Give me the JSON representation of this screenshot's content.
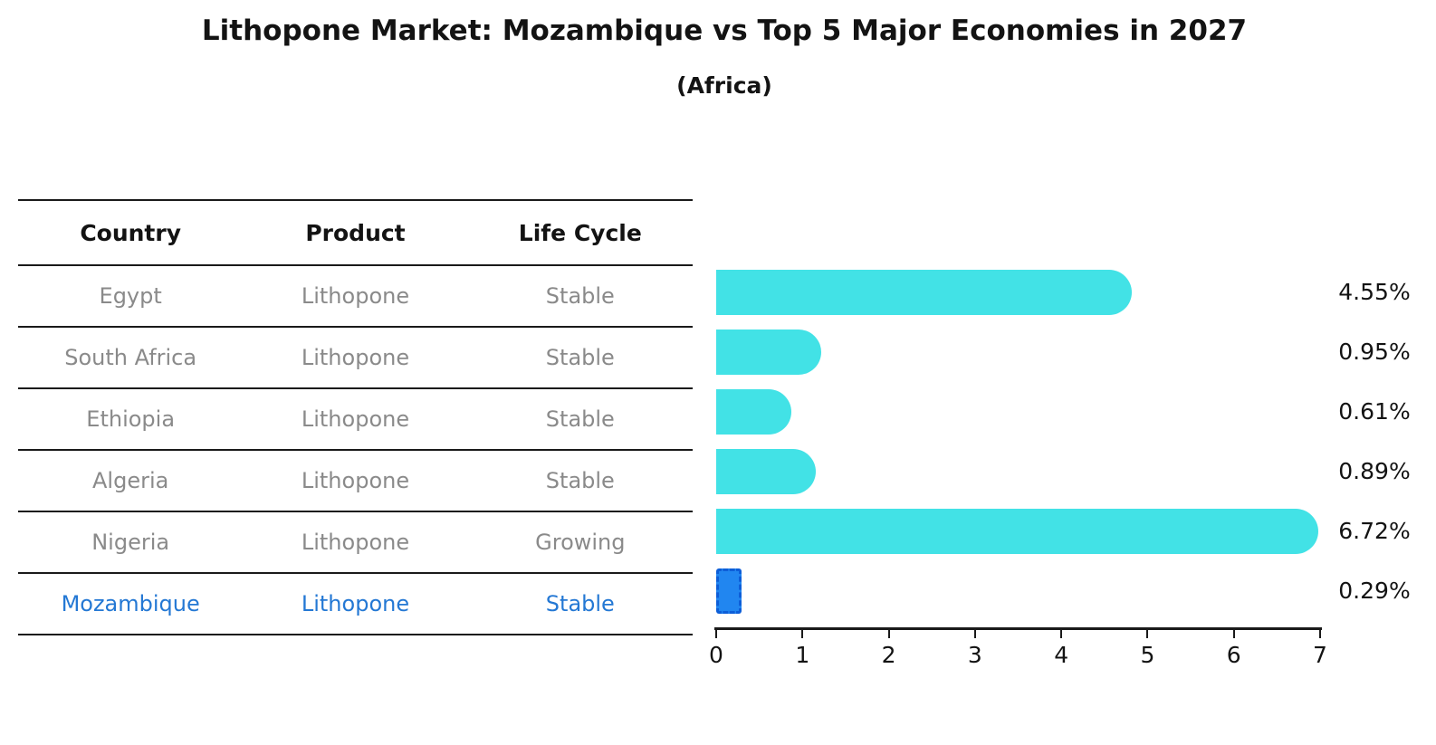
{
  "title": "Lithopone Market: Mozambique vs Top 5 Major Economies in 2027",
  "subtitle": "(Africa)",
  "table": {
    "headers": [
      "Country",
      "Product",
      "Life Cycle"
    ],
    "rows": [
      {
        "country": "Egypt",
        "product": "Lithopone",
        "life_cycle": "Stable",
        "highlight": false
      },
      {
        "country": "South Africa",
        "product": "Lithopone",
        "life_cycle": "Stable",
        "highlight": false
      },
      {
        "country": "Ethiopia",
        "product": "Lithopone",
        "life_cycle": "Stable",
        "highlight": false
      },
      {
        "country": "Algeria",
        "product": "Lithopone",
        "life_cycle": "Stable",
        "highlight": false
      },
      {
        "country": "Nigeria",
        "product": "Lithopone",
        "life_cycle": "Growing",
        "highlight": false
      },
      {
        "country": "Mozambique",
        "product": "Lithopone",
        "life_cycle": "Stable",
        "highlight": true
      }
    ]
  },
  "chart_data": {
    "type": "bar",
    "orientation": "horizontal",
    "categories": [
      "Egypt",
      "South Africa",
      "Ethiopia",
      "Algeria",
      "Nigeria",
      "Mozambique"
    ],
    "values": [
      4.55,
      0.95,
      0.61,
      0.89,
      6.72,
      0.29
    ],
    "labels": [
      "4.55%",
      "0.95%",
      "0.61%",
      "0.89%",
      "6.72%",
      "0.29%"
    ],
    "title": "Lithopone Market: Mozambique vs Top 5 Major Economies in 2027",
    "subtitle": "(Africa)",
    "xlabel": "",
    "ylabel": "",
    "xlim": [
      0,
      7
    ],
    "xticks": [
      "0",
      "1",
      "2",
      "3",
      "4",
      "5",
      "6",
      "7"
    ],
    "grid": false,
    "legend": false,
    "bar_color": "#42e2e6",
    "highlight_color": "#2186f0",
    "highlight_border_color": "#0d5ed8",
    "highlight_index": 5,
    "highlight_text_color": "#2478d4"
  }
}
